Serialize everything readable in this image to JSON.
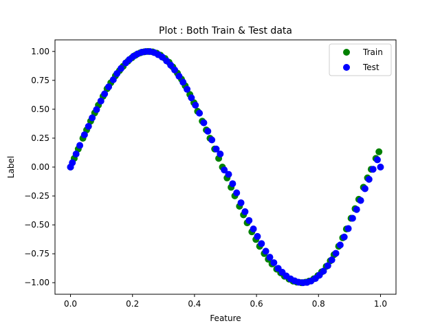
{
  "chart_data": {
    "type": "scatter",
    "title": "Plot : Both Train & Test data",
    "xlabel": "Feature",
    "ylabel": "Label",
    "xlim": [
      -0.05,
      1.05
    ],
    "ylim": [
      -1.1,
      1.1
    ],
    "xticks": [
      0.0,
      0.2,
      0.4,
      0.6,
      0.8,
      1.0
    ],
    "xtick_labels": [
      "0.0",
      "0.2",
      "0.4",
      "0.6",
      "0.8",
      "1.0"
    ],
    "yticks": [
      -1.0,
      -0.75,
      -0.5,
      -0.25,
      0.0,
      0.25,
      0.5,
      0.75,
      1.0
    ],
    "ytick_labels": [
      "−1.00",
      "−0.75",
      "−0.50",
      "−0.25",
      "0.00",
      "0.25",
      "0.50",
      "0.75",
      "1.00"
    ],
    "grid": false,
    "legend_position": "top-right",
    "series": [
      {
        "name": "Train",
        "color": "#008000",
        "x": [
          0.0,
          0.012,
          0.025,
          0.04,
          0.052,
          0.065,
          0.078,
          0.09,
          0.105,
          0.118,
          0.13,
          0.145,
          0.158,
          0.17,
          0.185,
          0.198,
          0.21,
          0.225,
          0.238,
          0.25,
          0.265,
          0.278,
          0.29,
          0.305,
          0.318,
          0.33,
          0.345,
          0.358,
          0.37,
          0.385,
          0.398,
          0.41,
          0.425,
          0.438,
          0.45,
          0.465,
          0.478,
          0.49,
          0.505,
          0.518,
          0.53,
          0.545,
          0.558,
          0.57,
          0.585,
          0.598,
          0.61,
          0.625,
          0.638,
          0.65,
          0.665,
          0.678,
          0.69,
          0.705,
          0.718,
          0.73,
          0.745,
          0.758,
          0.77,
          0.785,
          0.798,
          0.81,
          0.825,
          0.838,
          0.85,
          0.865,
          0.878,
          0.89,
          0.905,
          0.918,
          0.93,
          0.945,
          0.958,
          0.97,
          0.985,
          0.995
        ],
        "y": [
          0.0,
          0.075,
          0.156,
          0.249,
          0.321,
          0.397,
          0.468,
          0.536,
          0.612,
          0.677,
          0.729,
          0.789,
          0.834,
          0.872,
          0.915,
          0.945,
          0.968,
          0.988,
          0.997,
          1.0,
          0.996,
          0.985,
          0.968,
          0.939,
          0.906,
          0.866,
          0.812,
          0.76,
          0.703,
          0.628,
          0.557,
          0.482,
          0.397,
          0.321,
          0.249,
          0.156,
          0.075,
          0.0,
          -0.094,
          -0.175,
          -0.249,
          -0.339,
          -0.413,
          -0.482,
          -0.56,
          -0.626,
          -0.685,
          -0.748,
          -0.797,
          -0.838,
          -0.883,
          -0.915,
          -0.944,
          -0.969,
          -0.986,
          -0.995,
          -1.0,
          -0.996,
          -0.986,
          -0.966,
          -0.939,
          -0.907,
          -0.859,
          -0.811,
          -0.758,
          -0.685,
          -0.612,
          -0.536,
          -0.443,
          -0.36,
          -0.279,
          -0.175,
          -0.094,
          -0.019,
          0.075,
          0.132
        ]
      },
      {
        "name": "Test",
        "color": "#0000ff",
        "x": [
          0.0,
          0.006,
          0.018,
          0.03,
          0.045,
          0.058,
          0.07,
          0.084,
          0.098,
          0.11,
          0.123,
          0.138,
          0.15,
          0.163,
          0.178,
          0.19,
          0.203,
          0.216,
          0.23,
          0.243,
          0.256,
          0.27,
          0.283,
          0.296,
          0.31,
          0.323,
          0.336,
          0.35,
          0.363,
          0.376,
          0.39,
          0.403,
          0.416,
          0.43,
          0.443,
          0.456,
          0.47,
          0.483,
          0.496,
          0.51,
          0.523,
          0.536,
          0.55,
          0.563,
          0.576,
          0.59,
          0.603,
          0.616,
          0.63,
          0.643,
          0.656,
          0.67,
          0.683,
          0.696,
          0.71,
          0.723,
          0.736,
          0.75,
          0.763,
          0.776,
          0.79,
          0.803,
          0.816,
          0.83,
          0.843,
          0.856,
          0.87,
          0.883,
          0.896,
          0.91,
          0.923,
          0.936,
          0.95,
          0.963,
          0.976,
          0.99,
          1.0
        ],
        "y": [
          0.0,
          0.038,
          0.113,
          0.187,
          0.279,
          0.352,
          0.426,
          0.497,
          0.571,
          0.633,
          0.694,
          0.755,
          0.809,
          0.853,
          0.9,
          0.93,
          0.958,
          0.978,
          0.993,
          0.999,
          0.999,
          0.99,
          0.972,
          0.951,
          0.918,
          0.882,
          0.84,
          0.786,
          0.734,
          0.673,
          0.599,
          0.535,
          0.466,
          0.383,
          0.31,
          0.235,
          0.156,
          0.113,
          -0.025,
          -0.063,
          -0.144,
          -0.223,
          -0.309,
          -0.386,
          -0.462,
          -0.535,
          -0.6,
          -0.662,
          -0.728,
          -0.78,
          -0.827,
          -0.876,
          -0.91,
          -0.942,
          -0.967,
          -0.984,
          -0.996,
          -1.0,
          -0.997,
          -0.985,
          -0.964,
          -0.935,
          -0.9,
          -0.853,
          -0.803,
          -0.746,
          -0.674,
          -0.605,
          -0.532,
          -0.443,
          -0.367,
          -0.289,
          -0.187,
          -0.106,
          -0.019,
          0.063,
          0.0
        ]
      }
    ]
  }
}
